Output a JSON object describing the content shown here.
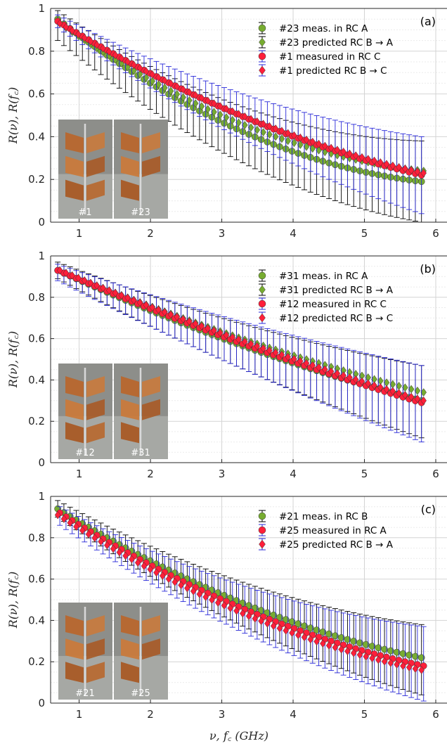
{
  "chart_data": [
    {
      "type": "scatter",
      "panel_label": "(a)",
      "xlim": [
        0.6,
        6
      ],
      "ylim": [
        0,
        1
      ],
      "xticks": [
        "1",
        "2",
        "3",
        "4",
        "5",
        "6"
      ],
      "yticks": [
        "0",
        "0.2",
        "0.4",
        "0.6",
        "0.8",
        "1"
      ],
      "ylabel": "R(ν), R(f_c)",
      "grid": true,
      "legend_position": "top-right",
      "photos": [
        "#1",
        "#23"
      ],
      "x_range": [
        0.7,
        5.8
      ],
      "series": [
        {
          "name": "#23 meas. in RC A",
          "marker": "circle",
          "color": "#77ac30",
          "errbar_color": "#000000",
          "start": 0.95,
          "mid": 0.43,
          "end": 0.19,
          "err_lo": 0.1,
          "err_hi": 0.04,
          "err_end_lo": 0.19,
          "err_end_hi": 0.19
        },
        {
          "name": "#23 predicted RC B → A",
          "marker": "diamond",
          "color": "#77ac30",
          "errbar_color": "#000000",
          "start": 0.93,
          "mid": 0.46,
          "end": 0.24,
          "err_lo": 0,
          "err_hi": 0
        },
        {
          "name": "#1 measured in RC C",
          "marker": "circle",
          "color": "#ff1f3a",
          "errbar_color": "#2828d8",
          "start": 0.94,
          "mid": 0.5,
          "end": 0.22,
          "err_lo": 0.03,
          "err_hi": 0.03,
          "err_end_lo": 0.18,
          "err_end_hi": 0.18
        },
        {
          "name": "#1 predicted RC B → C",
          "marker": "diamond",
          "color": "#ff1f3a",
          "errbar_color": "#2828d8",
          "start": 0.93,
          "mid": 0.5,
          "end": 0.23,
          "err_lo": 0,
          "err_hi": 0
        }
      ]
    },
    {
      "type": "scatter",
      "panel_label": "(b)",
      "xlim": [
        0.6,
        6
      ],
      "ylim": [
        0,
        1
      ],
      "xticks": [
        "1",
        "2",
        "3",
        "4",
        "5",
        "6"
      ],
      "yticks": [
        "0",
        "0.2",
        "0.4",
        "0.6",
        "0.8",
        "1"
      ],
      "ylabel": "R(ν), R(f_c)",
      "grid": true,
      "legend_position": "top-right",
      "photos": [
        "#12",
        "#31"
      ],
      "x_range": [
        0.7,
        5.8
      ],
      "series": [
        {
          "name": "#31 meas. in RC A",
          "marker": "circle",
          "color": "#77ac30",
          "errbar_color": "#000000",
          "start": 0.93,
          "mid": 0.57,
          "end": 0.3,
          "err_lo": 0.04,
          "err_hi": 0.04,
          "err_end_lo": 0.18,
          "err_end_hi": 0.17
        },
        {
          "name": "#31 predicted RC B → A",
          "marker": "diamond",
          "color": "#77ac30",
          "errbar_color": "#000000",
          "start": 0.93,
          "mid": 0.6,
          "end": 0.34,
          "err_lo": 0,
          "err_hi": 0
        },
        {
          "name": "#12 measured in RC C",
          "marker": "circle",
          "color": "#ff1f3a",
          "errbar_color": "#2828d8",
          "start": 0.93,
          "mid": 0.58,
          "end": 0.29,
          "err_lo": 0.05,
          "err_hi": 0.03,
          "err_end_lo": 0.19,
          "err_end_hi": 0.18
        },
        {
          "name": "#12 predicted RC B → C",
          "marker": "diamond",
          "color": "#ff1f3a",
          "errbar_color": "#2828d8",
          "start": 0.93,
          "mid": 0.59,
          "end": 0.3,
          "err_lo": 0,
          "err_hi": 0
        }
      ]
    },
    {
      "type": "scatter",
      "panel_label": "(c)",
      "xlim": [
        0.6,
        6
      ],
      "ylim": [
        0,
        1
      ],
      "xticks": [
        "1",
        "2",
        "3",
        "4",
        "5",
        "6"
      ],
      "yticks": [
        "0",
        "0.2",
        "0.4",
        "0.6",
        "0.8",
        "1"
      ],
      "ylabel": "R(ν), R(f_c)",
      "xlabel": "ν, f_c (GHz)",
      "grid": true,
      "legend_position": "top-right",
      "photos": [
        "#21",
        "#25"
      ],
      "x_range": [
        0.7,
        5.8
      ],
      "series": [
        {
          "name": "#21 meas. in RC B",
          "marker": "circle",
          "color": "#77ac30",
          "errbar_color": "#000000",
          "start": 0.94,
          "mid": 0.49,
          "end": 0.22,
          "err_lo": 0.04,
          "err_hi": 0.04,
          "err_end_lo": 0.18,
          "err_end_hi": 0.16
        },
        {
          "name": "#25 measured in RC A",
          "marker": "circle",
          "color": "#ff1f3a",
          "errbar_color": "#2828d8",
          "start": 0.92,
          "mid": 0.46,
          "end": 0.18,
          "err_lo": 0.06,
          "err_hi": 0.03,
          "err_end_lo": 0.17,
          "err_end_hi": 0.19
        },
        {
          "name": "#25 predicted RC B → A",
          "marker": "diamond",
          "color": "#ff1f3a",
          "errbar_color": "#2828d8",
          "start": 0.91,
          "mid": 0.44,
          "end": 0.16,
          "err_lo": 0,
          "err_hi": 0
        }
      ]
    }
  ]
}
